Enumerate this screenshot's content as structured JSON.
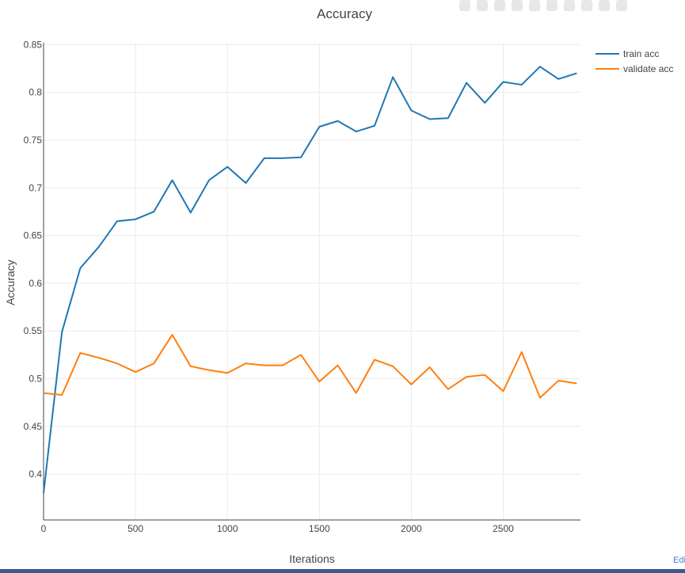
{
  "chart_data": {
    "type": "line",
    "title": "Accuracy",
    "xlabel": "Iterations",
    "ylabel": "Accuracy",
    "xlim": [
      0,
      2920
    ],
    "ylim": [
      0.352,
      0.852
    ],
    "xticks": [
      0,
      500,
      1000,
      1500,
      2000,
      2500
    ],
    "yticks": [
      0.4,
      0.45,
      0.5,
      0.55,
      0.6,
      0.65,
      0.7,
      0.75,
      0.8,
      0.85
    ],
    "grid": true,
    "legend_position": "top-right",
    "x": [
      0,
      100,
      200,
      300,
      400,
      500,
      600,
      700,
      800,
      900,
      1000,
      1100,
      1200,
      1300,
      1400,
      1500,
      1600,
      1700,
      1800,
      1900,
      2000,
      2100,
      2200,
      2300,
      2400,
      2500,
      2600,
      2700,
      2800,
      2900
    ],
    "series": [
      {
        "name": "train acc",
        "color": "#1f77b4",
        "values": [
          0.38,
          0.549,
          0.616,
          0.638,
          0.665,
          0.667,
          0.675,
          0.708,
          0.674,
          0.708,
          0.722,
          0.705,
          0.731,
          0.731,
          0.732,
          0.764,
          0.77,
          0.759,
          0.765,
          0.816,
          0.781,
          0.772,
          0.773,
          0.81,
          0.789,
          0.811,
          0.808,
          0.827,
          0.814,
          0.82
        ]
      },
      {
        "name": "validate acc",
        "color": "#ff7f0e",
        "values": [
          0.485,
          0.483,
          0.527,
          0.522,
          0.516,
          0.507,
          0.516,
          0.546,
          0.513,
          0.509,
          0.506,
          0.516,
          0.514,
          0.514,
          0.525,
          0.497,
          0.514,
          0.485,
          0.52,
          0.513,
          0.494,
          0.512,
          0.489,
          0.502,
          0.504,
          0.487,
          0.528,
          0.48,
          0.498,
          0.495
        ]
      }
    ]
  },
  "ui": {
    "edit_link": "Edit"
  }
}
